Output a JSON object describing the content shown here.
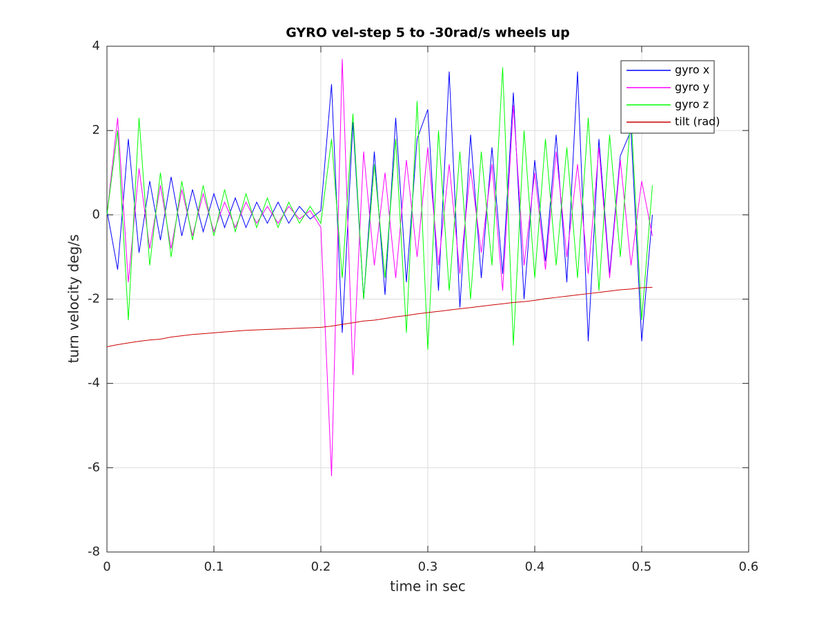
{
  "chart_data": {
    "type": "line",
    "title": "GYRO vel-step 5 to -30rad/s wheels up",
    "x_label": "time in sec",
    "y_label": "turn velocity deg/s",
    "x": [
      0,
      0.01,
      0.02,
      0.03,
      0.04,
      0.05,
      0.06,
      0.07,
      0.08,
      0.09,
      0.1,
      0.11,
      0.12,
      0.13,
      0.14,
      0.15,
      0.16,
      0.17,
      0.18,
      0.19,
      0.2,
      0.21,
      0.22,
      0.23,
      0.24,
      0.25,
      0.26,
      0.27,
      0.28,
      0.29,
      0.3,
      0.31,
      0.32,
      0.33,
      0.34,
      0.35,
      0.36,
      0.37,
      0.38,
      0.39,
      0.4,
      0.41,
      0.42,
      0.43,
      0.44,
      0.45,
      0.46,
      0.47,
      0.48,
      0.49,
      0.5,
      0.51
    ],
    "series": [
      {
        "name": "gyro x",
        "color": "#0000ff",
        "values": [
          0.1,
          -1.3,
          1.8,
          -0.9,
          0.8,
          -0.6,
          0.9,
          -0.5,
          0.6,
          -0.4,
          0.5,
          -0.3,
          0.4,
          -0.3,
          0.3,
          -0.2,
          0.3,
          -0.2,
          0.2,
          -0.1,
          0.1,
          3.1,
          -2.8,
          2.2,
          -2.0,
          1.5,
          -1.9,
          2.3,
          -1.6,
          1.8,
          2.5,
          -1.8,
          3.4,
          -2.2,
          1.9,
          -1.5,
          1.6,
          -1.4,
          2.9,
          -2.0,
          1.3,
          -1.1,
          1.9,
          -1.6,
          3.4,
          -3.0,
          1.8,
          -1.4,
          1.4,
          2.0,
          -3.0,
          0.0
        ]
      },
      {
        "name": "gyro y",
        "color": "#ff00ff",
        "values": [
          0,
          2.3,
          -1.6,
          1.1,
          -0.8,
          0.7,
          -0.8,
          0.6,
          -0.5,
          0.5,
          -0.4,
          0.3,
          -0.3,
          0.3,
          -0.2,
          0.2,
          -0.2,
          0.2,
          -0.1,
          0.1,
          -0.3,
          -6.2,
          3.7,
          -3.8,
          1.5,
          -1.2,
          1.0,
          -1.5,
          1.3,
          -1.0,
          1.6,
          -1.2,
          1.2,
          -1.4,
          1.1,
          -0.9,
          1.2,
          -1.8,
          2.6,
          -1.2,
          1.0,
          -1.3,
          1.5,
          -1.0,
          1.2,
          -1.4,
          1.6,
          -1.5,
          1.3,
          -1.2,
          0.8,
          -0.5
        ]
      },
      {
        "name": "gyro z",
        "color": "#00ff00",
        "values": [
          0,
          2.0,
          -2.5,
          2.3,
          -1.2,
          1.0,
          -1.0,
          0.8,
          -0.6,
          0.7,
          -0.5,
          0.6,
          -0.4,
          0.5,
          -0.3,
          0.4,
          -0.3,
          0.3,
          -0.2,
          0.2,
          -0.2,
          1.8,
          -1.5,
          2.4,
          -2.0,
          1.2,
          -1.5,
          1.8,
          -2.8,
          2.7,
          -3.2,
          2.0,
          -1.8,
          1.5,
          -2.0,
          1.5,
          -1.2,
          3.5,
          -3.1,
          2.0,
          -1.5,
          1.8,
          -1.2,
          1.6,
          -1.5,
          2.3,
          -1.8,
          1.9,
          -1.0,
          2.4,
          -2.5,
          0.7
        ]
      },
      {
        "name": "tilt (rad)",
        "color": "#cc0000",
        "values": [
          -3.13,
          -3.08,
          -3.04,
          -3.0,
          -2.97,
          -2.95,
          -2.9,
          -2.87,
          -2.84,
          -2.82,
          -2.8,
          -2.78,
          -2.76,
          -2.74,
          -2.73,
          -2.72,
          -2.71,
          -2.7,
          -2.69,
          -2.68,
          -2.67,
          -2.64,
          -2.6,
          -2.56,
          -2.52,
          -2.5,
          -2.46,
          -2.42,
          -2.39,
          -2.35,
          -2.32,
          -2.29,
          -2.26,
          -2.23,
          -2.2,
          -2.17,
          -2.14,
          -2.11,
          -2.08,
          -2.06,
          -2.03,
          -1.99,
          -1.96,
          -1.93,
          -1.9,
          -1.87,
          -1.84,
          -1.81,
          -1.78,
          -1.76,
          -1.73,
          -1.72
        ]
      }
    ],
    "xlim": [
      0,
      0.6
    ],
    "xticks": [
      0,
      0.1,
      0.2,
      0.3,
      0.4,
      0.5,
      0.6
    ],
    "ylim": [
      -8,
      4
    ],
    "yticks": [
      -8,
      -6,
      -4,
      -2,
      0,
      2,
      4
    ],
    "grid": true,
    "legend": "northeast"
  }
}
